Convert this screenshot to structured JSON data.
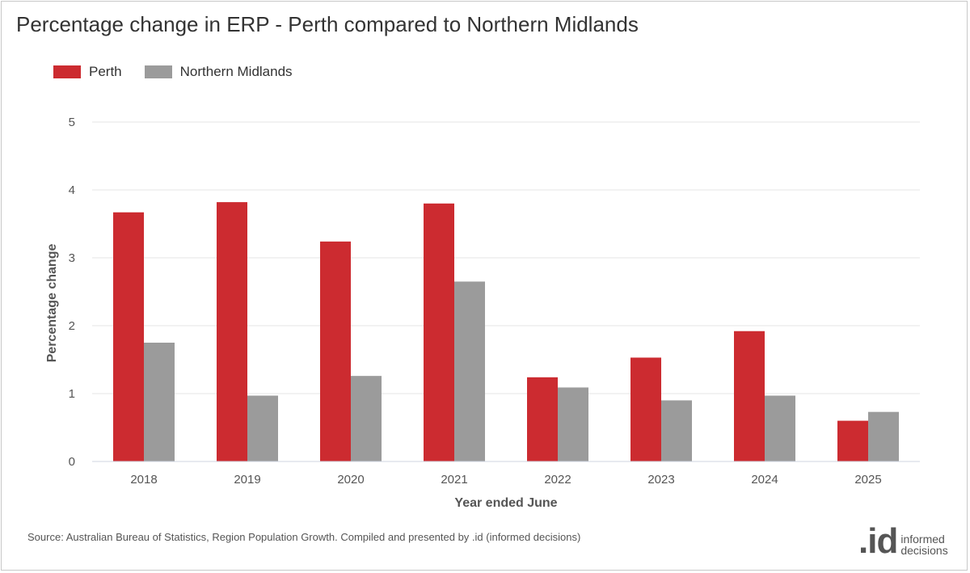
{
  "title": "Percentage change in ERP - Perth compared to Northern Midlands",
  "legend": {
    "items": [
      {
        "label": "Perth",
        "color": "#cc2b30"
      },
      {
        "label": "Northern Midlands",
        "color": "#9b9b9b"
      }
    ]
  },
  "source": "Source: Australian Bureau of Statistics, Region Population Growth. Compiled and presented by .id (informed decisions)",
  "logo": {
    "mark": ".id",
    "line1": "informed",
    "line2": "decisions"
  },
  "chart_data": {
    "type": "bar",
    "title": "Percentage change in ERP - Perth compared to Northern Midlands",
    "xlabel": "Year ended June",
    "ylabel": "Percentage change",
    "categories": [
      "2018",
      "2019",
      "2020",
      "2021",
      "2022",
      "2023",
      "2024",
      "2025"
    ],
    "series": [
      {
        "name": "Perth",
        "color": "#cc2b30",
        "values": [
          3.67,
          3.82,
          3.24,
          3.8,
          1.24,
          1.53,
          1.92,
          0.6
        ]
      },
      {
        "name": "Northern Midlands",
        "color": "#9b9b9b",
        "values": [
          1.75,
          0.97,
          1.26,
          2.65,
          1.09,
          0.9,
          0.97,
          0.73
        ]
      }
    ],
    "ylim": [
      0,
      5
    ],
    "yticks": [
      0,
      1,
      2,
      3,
      4,
      5
    ],
    "grid": true,
    "legend_position": "top-left"
  }
}
